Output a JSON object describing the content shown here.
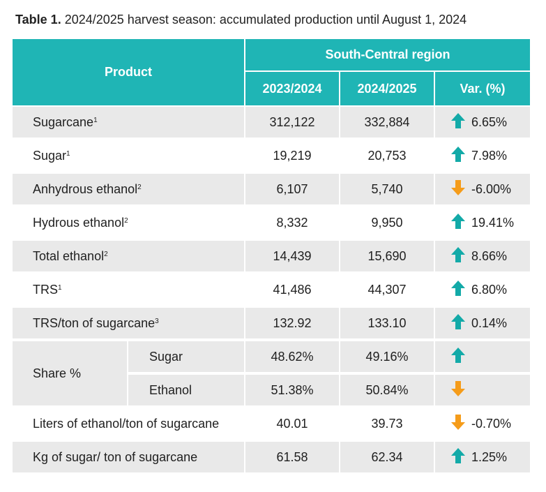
{
  "title": {
    "label": "Table 1.",
    "text": "2024/2025 harvest season: accumulated production until August 1, 2024"
  },
  "header": {
    "product": "Product",
    "region": "South-Central region",
    "col_prev": "2023/2024",
    "col_curr": "2024/2025",
    "col_var": "Var. (%)"
  },
  "rows": [
    {
      "product": "Sugarcane",
      "note": "1",
      "prev": "312,122",
      "curr": "332,884",
      "dir": "up",
      "var": "6.65%"
    },
    {
      "product": "Sugar",
      "note": "1",
      "prev": "19,219",
      "curr": "20,753",
      "dir": "up",
      "var": "7.98%"
    },
    {
      "product": "Anhydrous ethanol",
      "note": "2",
      "prev": "6,107",
      "curr": "5,740",
      "dir": "down",
      "var": "-6.00%"
    },
    {
      "product": "Hydrous ethanol",
      "note": "2",
      "prev": "8,332",
      "curr": "9,950",
      "dir": "up",
      "var": "19.41%"
    },
    {
      "product": "Total ethanol",
      "note": "2",
      "prev": "14,439",
      "curr": "15,690",
      "dir": "up",
      "var": "8.66%"
    },
    {
      "product": "TRS",
      "note": "1",
      "prev": "41,486",
      "curr": "44,307",
      "dir": "up",
      "var": "6.80%"
    },
    {
      "product": "TRS/ton of sugarcane",
      "note": "3",
      "prev": "132.92",
      "curr": "133.10",
      "dir": "up",
      "var": "0.14%"
    }
  ],
  "share": {
    "label": "Share %",
    "rows": [
      {
        "product": "Sugar",
        "prev": "48.62%",
        "curr": "49.16%",
        "dir": "up"
      },
      {
        "product": "Ethanol",
        "prev": "51.38%",
        "curr": "50.84%",
        "dir": "down"
      }
    ]
  },
  "tail_rows": [
    {
      "product": "Liters of ethanol/ton of sugarcane",
      "prev": "40.01",
      "curr": "39.73",
      "dir": "down",
      "var": "-0.70%"
    },
    {
      "product": "Kg of sugar/ ton of sugarcane",
      "prev": "61.58",
      "curr": "62.34",
      "dir": "up",
      "var": "1.25%"
    }
  ],
  "colors": {
    "header": "#1fb5b5",
    "row_shade": "#e9e9e9",
    "up": "#13aaa8",
    "down": "#f59c1a"
  }
}
